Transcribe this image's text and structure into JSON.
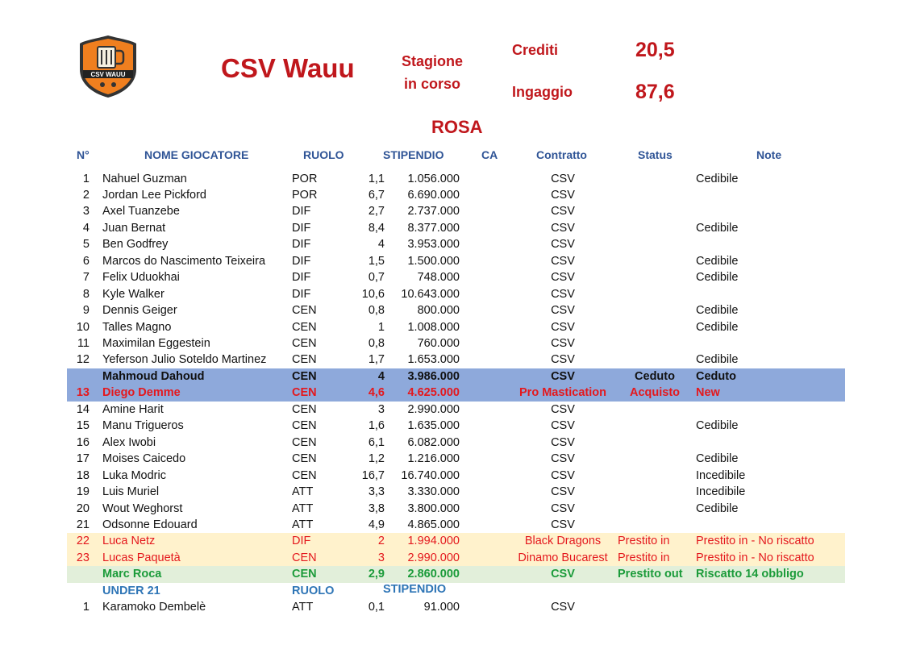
{
  "header": {
    "club_name": "CSV Wauu",
    "season_line1": "Stagione",
    "season_line2": "in corso",
    "crediti_label": "Crediti",
    "crediti_value": "20,5",
    "ingaggio_label": "Ingaggio",
    "ingaggio_value": "87,6",
    "rosa_title": "ROSA",
    "logo_text": "CSV WAUU"
  },
  "columns": {
    "num": "N°",
    "name": "NOME GIOCATORE",
    "role": "RUOLO",
    "salary": "STIPENDIO",
    "ca": "CA",
    "contract": "Contratto",
    "status": "Status",
    "note": "Note"
  },
  "players": [
    {
      "num": "1",
      "name": "Nahuel Guzman",
      "role": "POR",
      "credits": "1,1",
      "salary": "1.056.000",
      "contract": "CSV",
      "status": "",
      "note": "Cedibile"
    },
    {
      "num": "2",
      "name": "Jordan Lee Pickford",
      "role": "POR",
      "credits": "6,7",
      "salary": "6.690.000",
      "contract": "CSV",
      "status": "",
      "note": ""
    },
    {
      "num": "3",
      "name": "Axel Tuanzebe",
      "role": "DIF",
      "credits": "2,7",
      "salary": "2.737.000",
      "contract": "CSV",
      "status": "",
      "note": ""
    },
    {
      "num": "4",
      "name": "Juan Bernat",
      "role": "DIF",
      "credits": "8,4",
      "salary": "8.377.000",
      "contract": "CSV",
      "status": "",
      "note": "Cedibile"
    },
    {
      "num": "5",
      "name": "Ben Godfrey",
      "role": "DIF",
      "credits": "4",
      "salary": "3.953.000",
      "contract": "CSV",
      "status": "",
      "note": ""
    },
    {
      "num": "6",
      "name": "Marcos do Nascimento Teixeira",
      "role": "DIF",
      "credits": "1,5",
      "salary": "1.500.000",
      "contract": "CSV",
      "status": "",
      "note": "Cedibile"
    },
    {
      "num": "7",
      "name": "Felix Uduokhai",
      "role": "DIF",
      "credits": "0,7",
      "salary": "748.000",
      "contract": "CSV",
      "status": "",
      "note": "Cedibile"
    },
    {
      "num": "8",
      "name": "Kyle Walker",
      "role": "DIF",
      "credits": "10,6",
      "salary": "10.643.000",
      "contract": "CSV",
      "status": "",
      "note": ""
    },
    {
      "num": "9",
      "name": "Dennis Geiger",
      "role": "CEN",
      "credits": "0,8",
      "salary": "800.000",
      "contract": "CSV",
      "status": "",
      "note": "Cedibile"
    },
    {
      "num": "10",
      "name": "Talles Magno",
      "role": "CEN",
      "credits": "1",
      "salary": "1.008.000",
      "contract": "CSV",
      "status": "",
      "note": "Cedibile"
    },
    {
      "num": "11",
      "name": "Maximilan Eggestein",
      "role": "CEN",
      "credits": "0,8",
      "salary": "760.000",
      "contract": "CSV",
      "status": "",
      "note": ""
    },
    {
      "num": "12",
      "name": "Yeferson Julio Soteldo Martinez",
      "role": "CEN",
      "credits": "1,7",
      "salary": "1.653.000",
      "contract": "CSV",
      "status": "",
      "note": "Cedibile"
    },
    {
      "num": "",
      "name": "Mahmoud Dahoud",
      "role": "CEN",
      "credits": "4",
      "salary": "3.986.000",
      "contract": "CSV",
      "status": "Ceduto",
      "note": "Ceduto"
    },
    {
      "num": "13",
      "name": "Diego Demme",
      "role": "CEN",
      "credits": "4,6",
      "salary": "4.625.000",
      "contract": "Pro Mastication",
      "status": "Acquisto",
      "note": "New"
    },
    {
      "num": "14",
      "name": "Amine Harit",
      "role": "CEN",
      "credits": "3",
      "salary": "2.990.000",
      "contract": "CSV",
      "status": "",
      "note": ""
    },
    {
      "num": "15",
      "name": "Manu Trigueros",
      "role": "CEN",
      "credits": "1,6",
      "salary": "1.635.000",
      "contract": "CSV",
      "status": "",
      "note": "Cedibile"
    },
    {
      "num": "16",
      "name": "Alex Iwobi",
      "role": "CEN",
      "credits": "6,1",
      "salary": "6.082.000",
      "contract": "CSV",
      "status": "",
      "note": ""
    },
    {
      "num": "17",
      "name": "Moises Caicedo",
      "role": "CEN",
      "credits": "1,2",
      "salary": "1.216.000",
      "contract": "CSV",
      "status": "",
      "note": "Cedibile"
    },
    {
      "num": "18",
      "name": "Luka Modric",
      "role": "CEN",
      "credits": "16,7",
      "salary": "16.740.000",
      "contract": "CSV",
      "status": "",
      "note": "Incedibile"
    },
    {
      "num": "19",
      "name": "Luis Muriel",
      "role": "ATT",
      "credits": "3,3",
      "salary": "3.330.000",
      "contract": "CSV",
      "status": "",
      "note": "Incedibile"
    },
    {
      "num": "20",
      "name": "Wout Weghorst",
      "role": "ATT",
      "credits": "3,8",
      "salary": "3.800.000",
      "contract": "CSV",
      "status": "",
      "note": "Cedibile"
    },
    {
      "num": "21",
      "name": "Odsonne Edouard",
      "role": "ATT",
      "credits": "4,9",
      "salary": "4.865.000",
      "contract": "CSV",
      "status": "",
      "note": ""
    },
    {
      "num": "22",
      "name": "Luca Netz",
      "role": "DIF",
      "credits": "2",
      "salary": "1.994.000",
      "contract": "Black Dragons",
      "status": "Prestito in",
      "note": "Prestito in - No riscatto"
    },
    {
      "num": "23",
      "name": "Lucas Paquetà",
      "role": "CEN",
      "credits": "3",
      "salary": "2.990.000",
      "contract": "Dinamo Bucarest",
      "status": "Prestito in",
      "note": "Prestito in - No riscatto"
    },
    {
      "num": "",
      "name": "Marc Roca",
      "role": "CEN",
      "credits": "2,9",
      "salary": "2.860.000",
      "contract": "CSV",
      "status": "Prestito out",
      "note": "Riscatto 14 obbligo"
    }
  ],
  "under21": {
    "name_header": "UNDER 21",
    "role_header": "RUOLO",
    "salary_header": "STIPENDIO",
    "players": [
      {
        "num": "1",
        "name": "Karamoko Dembelè",
        "role": "ATT",
        "credits": "0,1",
        "salary": "91.000",
        "contract": "CSV",
        "status": "",
        "note": ""
      }
    ]
  },
  "colors": {
    "title_red": "#c0171c",
    "header_blue": "#2f5496",
    "highlight_blue": "#8ea9db",
    "loan_in_yellow": "#fff2cc",
    "loan_out_green": "#e2efda",
    "text_red": "#e4181d",
    "text_green": "#1b9b3a"
  }
}
